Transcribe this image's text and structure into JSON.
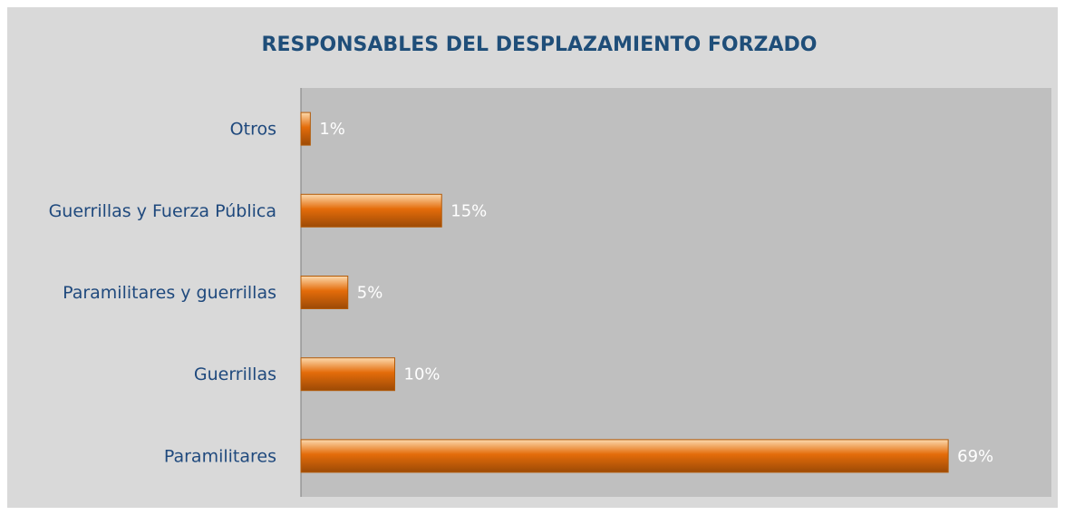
{
  "chart_data": {
    "type": "barh",
    "title": "RESPONSABLES DEL DESPLAZAMIENTO FORZADO",
    "categories": [
      "Otros",
      "Guerrillas y Fuerza Pública",
      "Paramilitares y guerrillas",
      "Guerrillas",
      "Paramilitares"
    ],
    "values": [
      1,
      15,
      5,
      10,
      69
    ],
    "value_labels": [
      "1%",
      "15%",
      "5%",
      "10%",
      "69%"
    ],
    "color": "#e46c0a",
    "xlim": [
      0,
      80
    ]
  }
}
